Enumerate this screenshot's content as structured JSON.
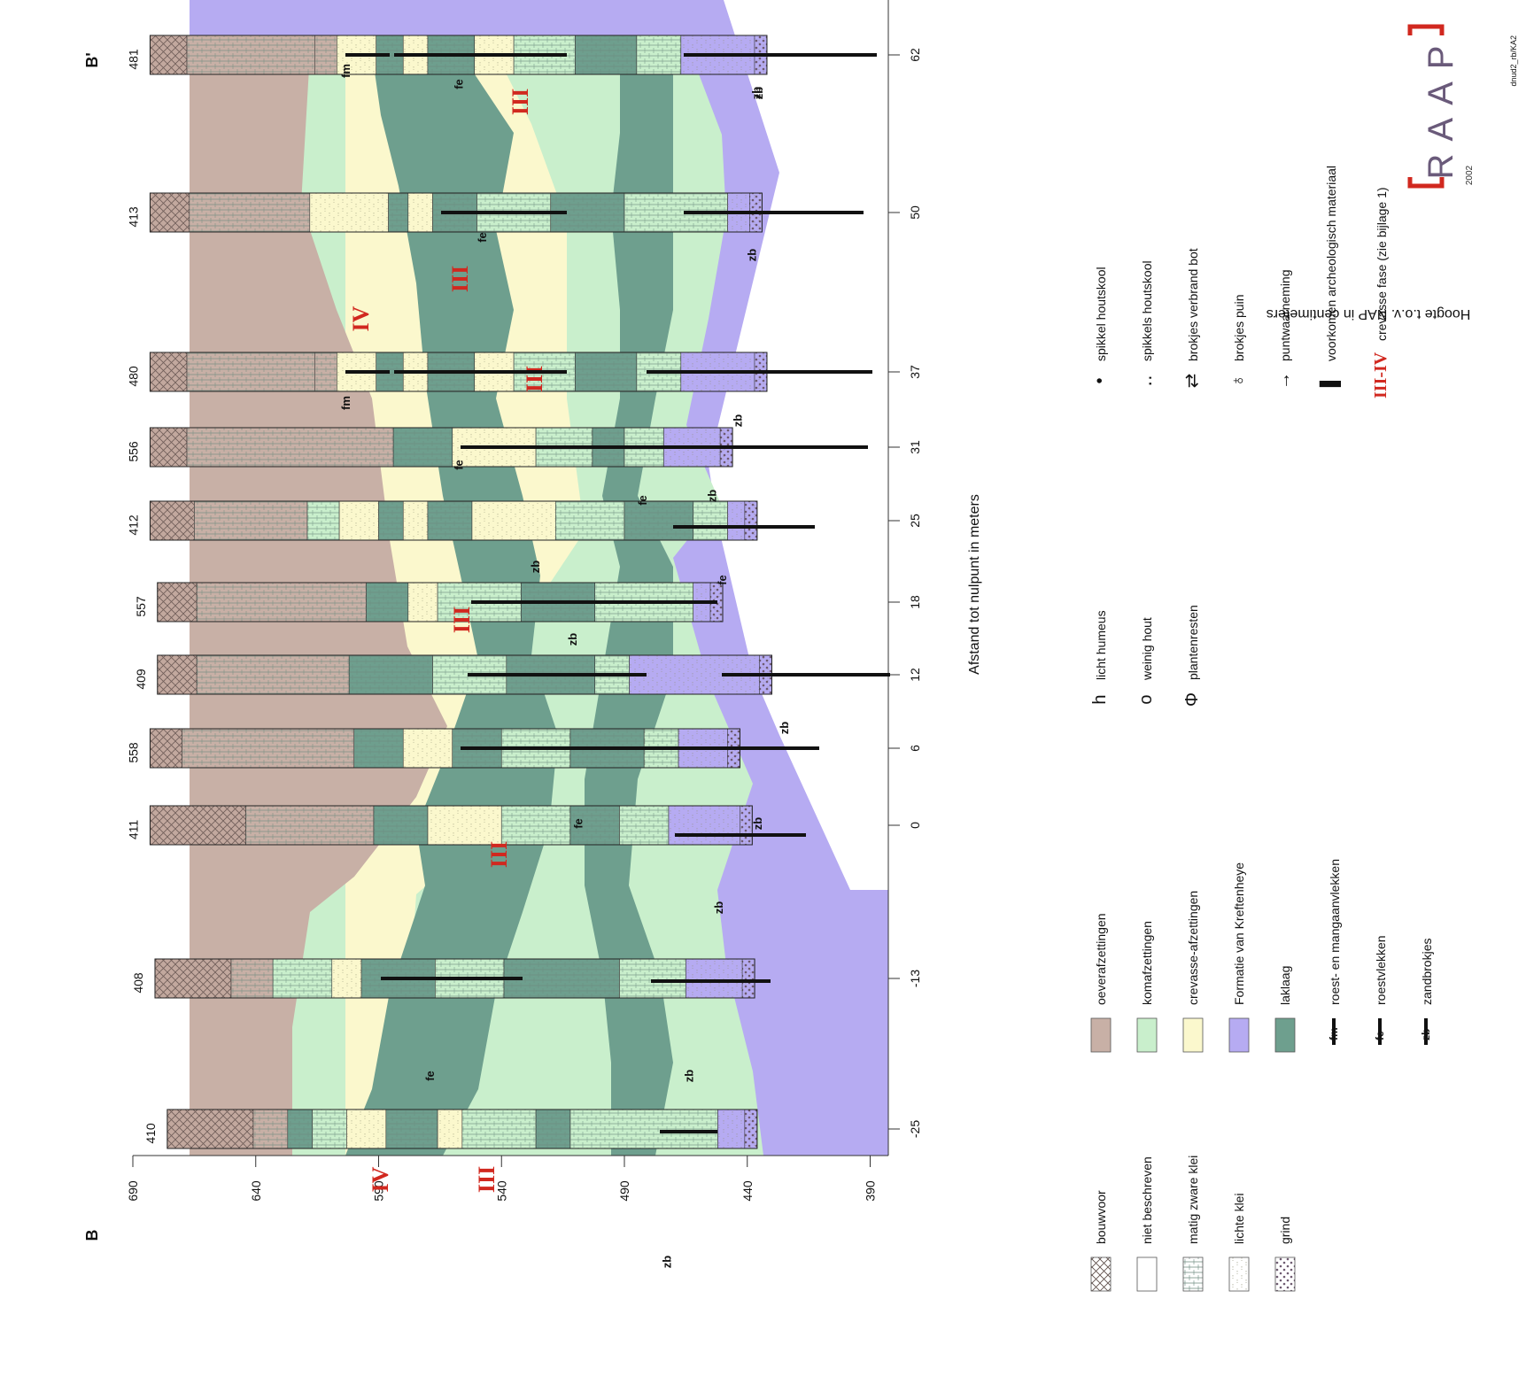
{
  "section": {
    "start_label": "B",
    "end_label": "B'",
    "x_axis_label": "Afstand tot nulpunt in meters",
    "y_axis_label": "Hoogte t.o.v. NAP in centimeters",
    "x_ticks": [
      -25,
      -13,
      0,
      6,
      12,
      18,
      25,
      31,
      37,
      50,
      62
    ],
    "y_ticks": [
      690,
      640,
      590,
      540,
      490,
      440,
      390
    ],
    "phase_labels": [
      "IV",
      "III",
      "III",
      "III",
      "III",
      "III",
      "IV",
      "III"
    ]
  },
  "boreholes": [
    {
      "id": "410",
      "x": -25,
      "top": 676,
      "bottom": 436,
      "layers": [
        {
          "from": 676,
          "to": 641,
          "fill": "bouwvoor"
        },
        {
          "from": 641,
          "to": 627,
          "fill": "oever"
        },
        {
          "from": 627,
          "to": 617,
          "fill": "lak"
        },
        {
          "from": 617,
          "to": 603,
          "fill": "kom"
        },
        {
          "from": 603,
          "to": 587,
          "fill": "crev"
        },
        {
          "from": 587,
          "to": 566,
          "fill": "lak"
        },
        {
          "from": 566,
          "to": 556,
          "fill": "crev"
        },
        {
          "from": 556,
          "to": 526,
          "fill": "kom"
        },
        {
          "from": 526,
          "to": 512,
          "fill": "lak"
        },
        {
          "from": 512,
          "to": 452,
          "fill": "kom"
        },
        {
          "from": 452,
          "to": 436,
          "fill": "kreft"
        }
      ]
    },
    {
      "id": "408",
      "x": -13,
      "top": 681,
      "bottom": 437,
      "layers": [
        {
          "from": 681,
          "to": 650,
          "fill": "bouwvoor"
        },
        {
          "from": 650,
          "to": 633,
          "fill": "oever"
        },
        {
          "from": 633,
          "to": 609,
          "fill": "kom"
        },
        {
          "from": 609,
          "to": 597,
          "fill": "crev"
        },
        {
          "from": 597,
          "to": 567,
          "fill": "lak"
        },
        {
          "from": 567,
          "to": 539,
          "fill": "kom"
        },
        {
          "from": 539,
          "to": 492,
          "fill": "lak"
        },
        {
          "from": 492,
          "to": 465,
          "fill": "kom"
        },
        {
          "from": 465,
          "to": 437,
          "fill": "kreft"
        }
      ]
    },
    {
      "id": "411",
      "x": 0,
      "top": 683,
      "bottom": 438,
      "layers": [
        {
          "from": 683,
          "to": 644,
          "fill": "bouwvoor"
        },
        {
          "from": 644,
          "to": 592,
          "fill": "oever"
        },
        {
          "from": 592,
          "to": 570,
          "fill": "lak"
        },
        {
          "from": 570,
          "to": 540,
          "fill": "crev"
        },
        {
          "from": 540,
          "to": 512,
          "fill": "kom"
        },
        {
          "from": 512,
          "to": 492,
          "fill": "lak"
        },
        {
          "from": 492,
          "to": 472,
          "fill": "kom"
        },
        {
          "from": 472,
          "to": 438,
          "fill": "kreft"
        }
      ]
    },
    {
      "id": "558",
      "x": 6,
      "top": 683,
      "bottom": 443,
      "layers": [
        {
          "from": 683,
          "to": 670,
          "fill": "bouwvoor"
        },
        {
          "from": 670,
          "to": 600,
          "fill": "oever"
        },
        {
          "from": 600,
          "to": 580,
          "fill": "lak"
        },
        {
          "from": 580,
          "to": 560,
          "fill": "crev"
        },
        {
          "from": 560,
          "to": 540,
          "fill": "lak"
        },
        {
          "from": 540,
          "to": 512,
          "fill": "kom"
        },
        {
          "from": 512,
          "to": 482,
          "fill": "lak"
        },
        {
          "from": 482,
          "to": 468,
          "fill": "kom"
        },
        {
          "from": 468,
          "to": 443,
          "fill": "kreft"
        }
      ]
    },
    {
      "id": "409",
      "x": 12,
      "top": 680,
      "bottom": 430,
      "layers": [
        {
          "from": 680,
          "to": 664,
          "fill": "bouwvoor"
        },
        {
          "from": 664,
          "to": 602,
          "fill": "oever"
        },
        {
          "from": 602,
          "to": 568,
          "fill": "lak"
        },
        {
          "from": 568,
          "to": 538,
          "fill": "kom"
        },
        {
          "from": 538,
          "to": 502,
          "fill": "lak"
        },
        {
          "from": 502,
          "to": 488,
          "fill": "kom"
        },
        {
          "from": 488,
          "to": 430,
          "fill": "kreft"
        }
      ]
    },
    {
      "id": "557",
      "x": 18,
      "top": 680,
      "bottom": 450,
      "layers": [
        {
          "from": 680,
          "to": 664,
          "fill": "bouwvoor"
        },
        {
          "from": 664,
          "to": 595,
          "fill": "oever"
        },
        {
          "from": 595,
          "to": 578,
          "fill": "lak"
        },
        {
          "from": 578,
          "to": 566,
          "fill": "crev"
        },
        {
          "from": 566,
          "to": 532,
          "fill": "kom"
        },
        {
          "from": 532,
          "to": 502,
          "fill": "lak"
        },
        {
          "from": 502,
          "to": 462,
          "fill": "kom"
        },
        {
          "from": 462,
          "to": 450,
          "fill": "kreft"
        }
      ]
    },
    {
      "id": "412",
      "x": 25,
      "top": 683,
      "bottom": 436,
      "layers": [
        {
          "from": 683,
          "to": 665,
          "fill": "bouwvoor"
        },
        {
          "from": 665,
          "to": 619,
          "fill": "oever"
        },
        {
          "from": 619,
          "to": 606,
          "fill": "kom"
        },
        {
          "from": 606,
          "to": 590,
          "fill": "crev"
        },
        {
          "from": 590,
          "to": 580,
          "fill": "lak"
        },
        {
          "from": 580,
          "to": 570,
          "fill": "crev"
        },
        {
          "from": 570,
          "to": 552,
          "fill": "lak"
        },
        {
          "from": 552,
          "to": 518,
          "fill": "crev"
        },
        {
          "from": 518,
          "to": 490,
          "fill": "kom"
        },
        {
          "from": 490,
          "to": 462,
          "fill": "lak"
        },
        {
          "from": 462,
          "to": 448,
          "fill": "kom"
        },
        {
          "from": 448,
          "to": 436,
          "fill": "kreft"
        }
      ]
    },
    {
      "id": "556",
      "x": 31,
      "top": 683,
      "bottom": 446,
      "layers": [
        {
          "from": 683,
          "to": 668,
          "fill": "bouwvoor"
        },
        {
          "from": 668,
          "to": 584,
          "fill": "oever"
        },
        {
          "from": 584,
          "to": 560,
          "fill": "lak"
        },
        {
          "from": 560,
          "to": 526,
          "fill": "crev"
        },
        {
          "from": 526,
          "to": 503,
          "fill": "kom"
        },
        {
          "from": 503,
          "to": 490,
          "fill": "lak"
        },
        {
          "from": 490,
          "to": 474,
          "fill": "kom"
        },
        {
          "from": 474,
          "to": 446,
          "fill": "kreft"
        }
      ]
    },
    {
      "id": "480",
      "x": 37,
      "top": 683,
      "bottom": 432,
      "layers": [
        {
          "from": 683,
          "to": 668,
          "fill": "bouwvoor"
        },
        {
          "from": 668,
          "to": 616,
          "fill": "oever"
        },
        {
          "from": 616,
          "to": 607,
          "fill": "oever"
        },
        {
          "from": 607,
          "to": 591,
          "fill": "crev"
        },
        {
          "from": 591,
          "to": 580,
          "fill": "lak"
        },
        {
          "from": 580,
          "to": 570,
          "fill": "crev"
        },
        {
          "from": 570,
          "to": 551,
          "fill": "lak"
        },
        {
          "from": 551,
          "to": 535,
          "fill": "crev"
        },
        {
          "from": 535,
          "to": 510,
          "fill": "kom"
        },
        {
          "from": 510,
          "to": 485,
          "fill": "lak"
        },
        {
          "from": 485,
          "to": 467,
          "fill": "kom"
        },
        {
          "from": 467,
          "to": 432,
          "fill": "kreft"
        }
      ]
    },
    {
      "id": "413",
      "x": 50,
      "top": 683,
      "bottom": 434,
      "layers": [
        {
          "from": 683,
          "to": 667,
          "fill": "bouwvoor"
        },
        {
          "from": 667,
          "to": 618,
          "fill": "oever"
        },
        {
          "from": 618,
          "to": 586,
          "fill": "crev"
        },
        {
          "from": 586,
          "to": 578,
          "fill": "lak"
        },
        {
          "from": 578,
          "to": 568,
          "fill": "crev"
        },
        {
          "from": 568,
          "to": 550,
          "fill": "lak"
        },
        {
          "from": 550,
          "to": 520,
          "fill": "kom"
        },
        {
          "from": 520,
          "to": 490,
          "fill": "lak"
        },
        {
          "from": 490,
          "to": 448,
          "fill": "kom"
        },
        {
          "from": 448,
          "to": 434,
          "fill": "kreft"
        }
      ]
    },
    {
      "id": "481",
      "x": 62,
      "top": 683,
      "bottom": 432,
      "layers": [
        {
          "from": 683,
          "to": 668,
          "fill": "bouwvoor"
        },
        {
          "from": 668,
          "to": 616,
          "fill": "oever"
        },
        {
          "from": 616,
          "to": 607,
          "fill": "oever"
        },
        {
          "from": 607,
          "to": 591,
          "fill": "crev"
        },
        {
          "from": 591,
          "to": 580,
          "fill": "lak"
        },
        {
          "from": 580,
          "to": 570,
          "fill": "crev"
        },
        {
          "from": 570,
          "to": 551,
          "fill": "lak"
        },
        {
          "from": 551,
          "to": 535,
          "fill": "crev"
        },
        {
          "from": 535,
          "to": 510,
          "fill": "kom"
        },
        {
          "from": 510,
          "to": 485,
          "fill": "lak"
        },
        {
          "from": 485,
          "to": 467,
          "fill": "kom"
        },
        {
          "from": 467,
          "to": 432,
          "fill": "kreft"
        }
      ]
    }
  ],
  "feature_marks": [
    {
      "code": "zb"
    },
    {
      "code": "fe"
    },
    {
      "code": "zb"
    },
    {
      "code": "zb"
    },
    {
      "code": "zb"
    },
    {
      "code": "fe"
    },
    {
      "code": "zb"
    },
    {
      "code": "zb"
    },
    {
      "code": "fe"
    },
    {
      "code": "zb"
    },
    {
      "code": "zb"
    },
    {
      "code": "fe"
    },
    {
      "code": "zb"
    },
    {
      "code": "fm"
    },
    {
      "code": "fe"
    },
    {
      "code": "zb"
    },
    {
      "code": "fe"
    },
    {
      "code": "zb"
    },
    {
      "code": "fm"
    },
    {
      "code": "fe"
    },
    {
      "code": "zb"
    }
  ],
  "legend_lithology": [
    {
      "label": "bouwvoor",
      "pattern": "bouwvoor"
    },
    {
      "label": "niet beschreven",
      "pattern": "none"
    },
    {
      "label": "matig zware klei",
      "pattern": "matig"
    },
    {
      "label": "lichte klei",
      "pattern": "licht"
    },
    {
      "label": "grind",
      "pattern": "grind"
    }
  ],
  "legend_units": [
    {
      "label": "oeverafzettingen",
      "color": "#c8b0a6"
    },
    {
      "label": "komafzettingen",
      "color": "#c9efcc"
    },
    {
      "label": "crevasse-afzettingen",
      "color": "#fbf8cd"
    },
    {
      "label": "Formatie van Kreftenheye",
      "color": "#b6abf2"
    },
    {
      "label": "laklaag",
      "color": "#6e9f8e"
    }
  ],
  "legend_marks": [
    {
      "code": "fm",
      "label": "roest- en mangaanvlekken"
    },
    {
      "code": "fe",
      "label": "roestvlekken"
    },
    {
      "code": "zb",
      "label": "zandbrokjes"
    }
  ],
  "legend_symbols": [
    {
      "icon": "h-icon",
      "label": "licht humeus"
    },
    {
      "icon": "ring-icon",
      "label": "weinig hout"
    },
    {
      "icon": "plant-icon",
      "label": "plantenresten"
    },
    {
      "icon": "dot-icon",
      "label": "spikkel houtskool"
    },
    {
      "icon": "dots-icon",
      "label": "spikkels houtskool"
    },
    {
      "icon": "bone-icon",
      "label": "brokjes verbrand bot"
    },
    {
      "icon": "rubble-icon",
      "label": "brokjes puin"
    },
    {
      "icon": "arrow-icon",
      "label": "puntwaarneming"
    },
    {
      "icon": "bar-icon",
      "label": "voorkomen archeologisch materiaal"
    }
  ],
  "legend_phase": {
    "code": "III-IV",
    "label": "crevasse fase (zie bijlage 1)"
  },
  "logo": {
    "text": "RAAP",
    "year": "2002"
  },
  "drawing_code": "dnud2_rb/KA2",
  "colors": {
    "oever": "#c8b0a6",
    "kom": "#c9efcc",
    "crev": "#fbf8cd",
    "kreft": "#b6abf2",
    "lak": "#6e9f8e",
    "bouwvoor": "#c2a89e",
    "red": "#d1281f"
  }
}
